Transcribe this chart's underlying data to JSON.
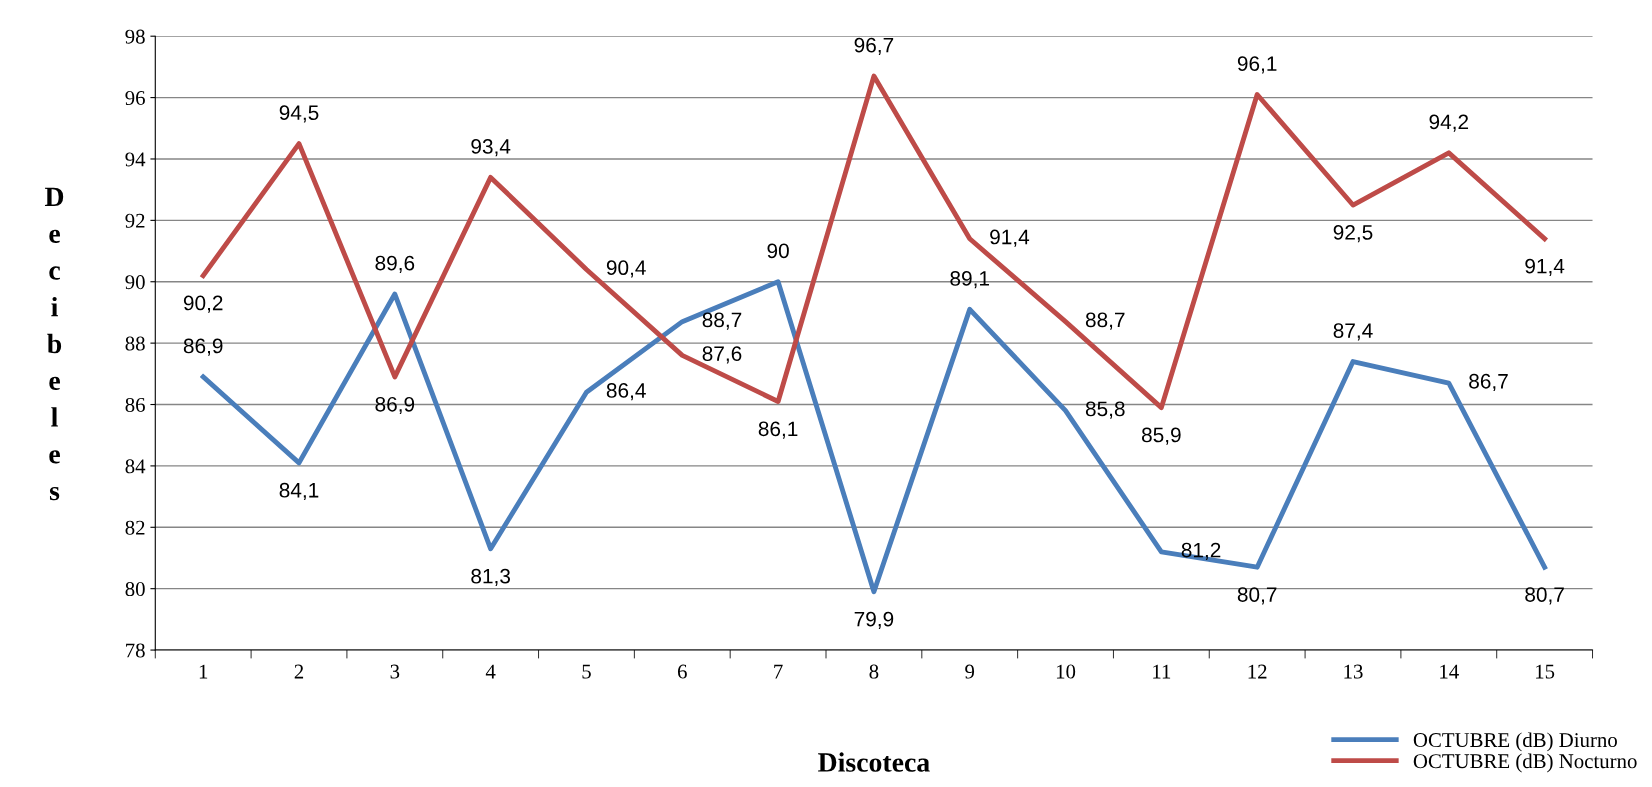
{
  "chart_data": {
    "type": "line",
    "xlabel": "Discoteca",
    "ylabel": "Decibeles",
    "categories": [
      "1",
      "2",
      "3",
      "4",
      "5",
      "6",
      "7",
      "8",
      "9",
      "10",
      "11",
      "12",
      "13",
      "14",
      "15"
    ],
    "series": [
      {
        "name": "OCTUBRE (dB) Diurno",
        "color": "#4a7ebb",
        "values": [
          86.9,
          84.1,
          89.6,
          81.3,
          86.4,
          88.7,
          90,
          79.9,
          89.1,
          85.8,
          81.2,
          80.7,
          87.4,
          86.7,
          80.7
        ],
        "value_labels": [
          "86,9",
          "84,1",
          "89,6",
          "81,3",
          "86,4",
          "88,7",
          "90",
          "79,9",
          "89,1",
          "85,8",
          "81,2",
          "80,7",
          "87,4",
          "86,7",
          "80,7"
        ]
      },
      {
        "name": "OCTUBRE (dB) Nocturno",
        "color": "#be4b48",
        "values": [
          90.2,
          94.5,
          86.9,
          93.4,
          90.4,
          87.6,
          86.1,
          96.7,
          91.4,
          88.7,
          85.9,
          96.1,
          92.5,
          94.2,
          91.4
        ],
        "value_labels": [
          "90,2",
          "94,5",
          "86,9",
          "93,4",
          "90,4",
          "87,6",
          "86,1",
          "96,7",
          "91,4",
          "88,7",
          "85,9",
          "96,1",
          "92,5",
          "94,2",
          "91,4"
        ]
      }
    ],
    "ylim": [
      78,
      98
    ],
    "yticks": [
      78,
      80,
      82,
      84,
      86,
      88,
      90,
      92,
      94,
      96,
      98
    ],
    "grid": "y",
    "legend": "bottom right",
    "marker": "none",
    "line_style": "solid"
  }
}
